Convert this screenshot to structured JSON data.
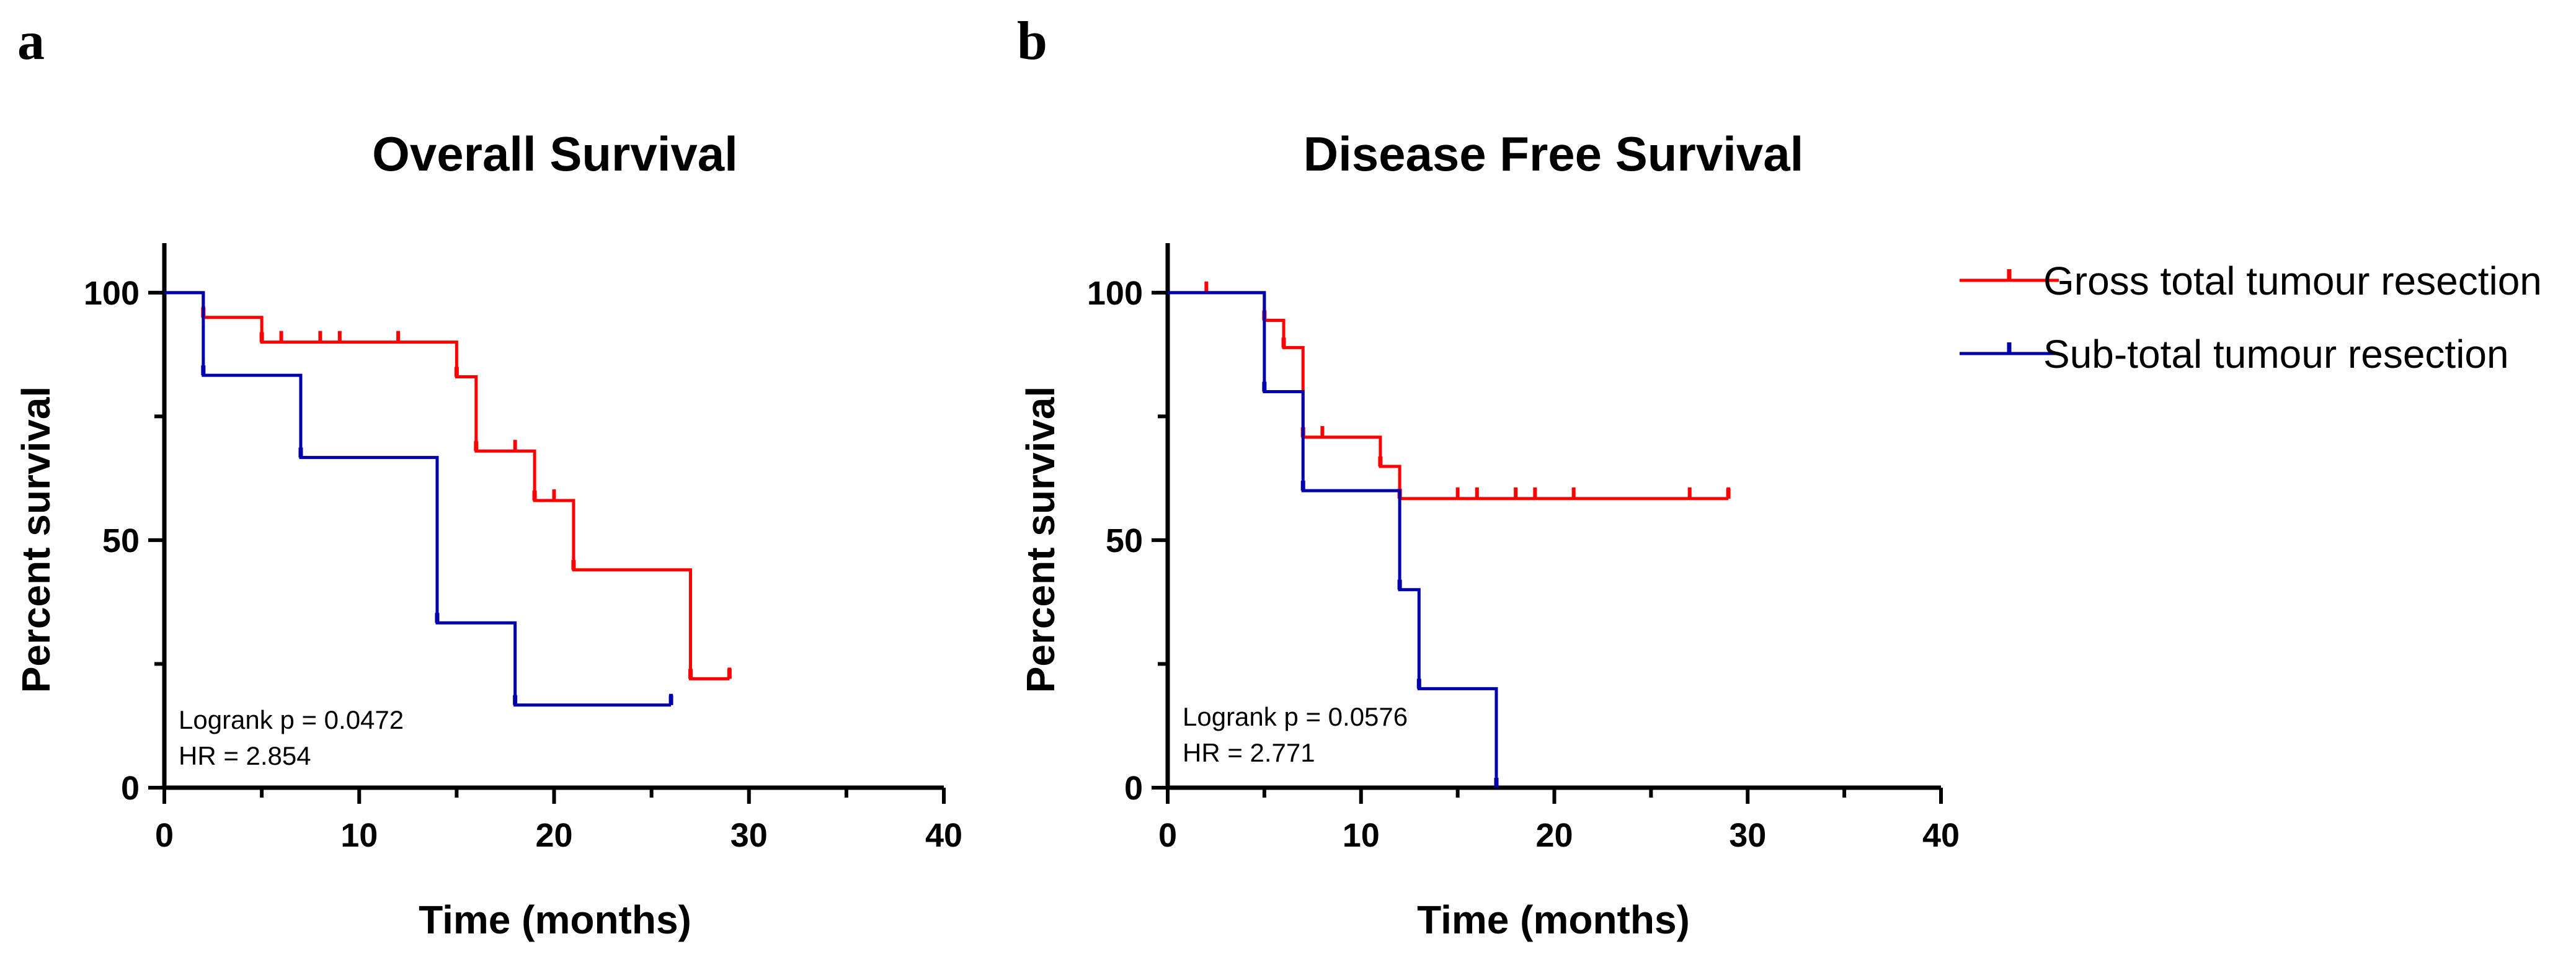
{
  "legend": {
    "placement": "right",
    "entries": [
      {
        "label": "Gross total tumour resection",
        "color": "#ff0000"
      },
      {
        "label": "Sub-total tumour resection",
        "color": "#0000aa"
      }
    ]
  },
  "chart_data": [
    {
      "type": "line",
      "subtype": "kaplan-meier",
      "panel": "a",
      "title": "Overall Survival",
      "xlabel": "Time (months)",
      "ylabel": "Percent survival",
      "xlim": [
        0,
        40
      ],
      "ylim": [
        0,
        110
      ],
      "xticks": [
        0,
        10,
        20,
        30,
        40
      ],
      "yticks": [
        0,
        50,
        100
      ],
      "grid": false,
      "annotations": [
        "Logrank p = 0.0472",
        "HR = 2.854"
      ],
      "series": [
        {
          "name": "Gross total tumour resection",
          "color": "#ff0000",
          "steps": [
            [
              0,
              100
            ],
            [
              2,
              95
            ],
            [
              5,
              90
            ],
            [
              15,
              83
            ],
            [
              16,
              68
            ],
            [
              19,
              58
            ],
            [
              21,
              44
            ],
            [
              27,
              22
            ],
            [
              29,
              22
            ]
          ],
          "censor": [
            [
              2,
              95
            ],
            [
              6,
              90
            ],
            [
              8,
              90
            ],
            [
              9,
              90
            ],
            [
              12,
              90
            ],
            [
              18,
              68
            ],
            [
              20,
              58
            ],
            [
              29,
              22
            ]
          ]
        },
        {
          "name": "Sub-total tumour resection",
          "color": "#0000aa",
          "steps": [
            [
              0,
              100
            ],
            [
              2,
              83.3
            ],
            [
              7,
              66.7
            ],
            [
              14,
              33.3
            ],
            [
              18,
              16.7
            ],
            [
              26,
              16.7
            ]
          ],
          "censor": [
            [
              26,
              16.7
            ]
          ]
        }
      ]
    },
    {
      "type": "line",
      "subtype": "kaplan-meier",
      "panel": "b",
      "title": "Disease Free Survival",
      "xlabel": "Time (months)",
      "ylabel": "Percent survival",
      "xlim": [
        0,
        40
      ],
      "ylim": [
        0,
        110
      ],
      "xticks": [
        0,
        10,
        20,
        30,
        40
      ],
      "yticks": [
        0,
        50,
        100
      ],
      "grid": false,
      "annotations": [
        "Logrank p = 0.0576",
        "HR = 2.771"
      ],
      "series": [
        {
          "name": "Gross total tumour resection",
          "color": "#ff0000",
          "steps": [
            [
              0,
              100
            ],
            [
              5,
              94.4
            ],
            [
              6,
              88.9
            ],
            [
              7,
              70.8
            ],
            [
              11,
              64.9
            ],
            [
              12,
              58.4
            ],
            [
              29,
              58.4
            ]
          ],
          "censor": [
            [
              2,
              100
            ],
            [
              8,
              70.8
            ],
            [
              15,
              58.4
            ],
            [
              16,
              58.4
            ],
            [
              18,
              58.4
            ],
            [
              19,
              58.4
            ],
            [
              21,
              58.4
            ],
            [
              27,
              58.4
            ],
            [
              29,
              58.4
            ]
          ]
        },
        {
          "name": "Sub-total tumour resection",
          "color": "#0000aa",
          "steps": [
            [
              0,
              100
            ],
            [
              5,
              80
            ],
            [
              7,
              60
            ],
            [
              12,
              40
            ],
            [
              13,
              20
            ],
            [
              17,
              0
            ]
          ],
          "censor": []
        }
      ]
    }
  ]
}
